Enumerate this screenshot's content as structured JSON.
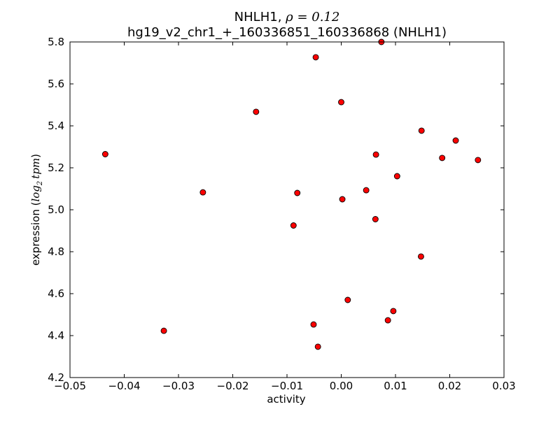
{
  "chart_data": {
    "type": "scatter",
    "title": "NHLH1, ρ = 0.12",
    "title_line1_prefix": "NHLH1, ",
    "title_line1_math": "ρ = 0.12",
    "subtitle": "hg19_v2_chr1_+_160336851_160336868 (NHLH1)",
    "xlabel": "activity",
    "ylabel_prefix": "expression (",
    "ylabel_math_log": "log",
    "ylabel_math_sub": "2",
    "ylabel_math_tpm": "tpm",
    "ylabel_suffix": ")",
    "xlim": [
      -0.05,
      0.03
    ],
    "ylim": [
      4.2,
      5.8
    ],
    "xticks": [
      -0.05,
      -0.04,
      -0.03,
      -0.02,
      -0.01,
      0.0,
      0.01,
      0.02,
      0.03
    ],
    "xtick_labels": [
      "−0.05",
      "−0.04",
      "−0.03",
      "−0.02",
      "−0.01",
      "0.00",
      "0.01",
      "0.02",
      "0.03"
    ],
    "yticks": [
      4.2,
      4.4,
      4.6,
      4.8,
      5.0,
      5.2,
      5.4,
      5.6,
      5.8
    ],
    "ytick_labels": [
      "4.2",
      "4.4",
      "4.6",
      "4.8",
      "5.0",
      "5.2",
      "5.4",
      "5.6",
      "5.8"
    ],
    "grid": false,
    "marker_color": "#ff0000",
    "marker_edge_color": "#000000",
    "points": [
      {
        "x": -0.0435,
        "y": 5.265
      },
      {
        "x": -0.0327,
        "y": 4.423
      },
      {
        "x": -0.0255,
        "y": 5.083
      },
      {
        "x": -0.0157,
        "y": 5.467
      },
      {
        "x": -0.0088,
        "y": 4.925
      },
      {
        "x": -0.0081,
        "y": 5.08
      },
      {
        "x": -0.0051,
        "y": 4.453
      },
      {
        "x": -0.0047,
        "y": 5.727
      },
      {
        "x": -0.0043,
        "y": 4.347
      },
      {
        "x": 0.0,
        "y": 5.513
      },
      {
        "x": 0.0002,
        "y": 5.05
      },
      {
        "x": 0.0012,
        "y": 4.57
      },
      {
        "x": 0.0046,
        "y": 5.093
      },
      {
        "x": 0.0063,
        "y": 4.955
      },
      {
        "x": 0.0064,
        "y": 5.263
      },
      {
        "x": 0.0074,
        "y": 5.8
      },
      {
        "x": 0.0086,
        "y": 4.473
      },
      {
        "x": 0.0096,
        "y": 4.517
      },
      {
        "x": 0.0103,
        "y": 5.16
      },
      {
        "x": 0.0147,
        "y": 4.777
      },
      {
        "x": 0.0148,
        "y": 5.377
      },
      {
        "x": 0.0186,
        "y": 5.247
      },
      {
        "x": 0.0211,
        "y": 5.33
      },
      {
        "x": 0.0252,
        "y": 5.237
      }
    ]
  }
}
